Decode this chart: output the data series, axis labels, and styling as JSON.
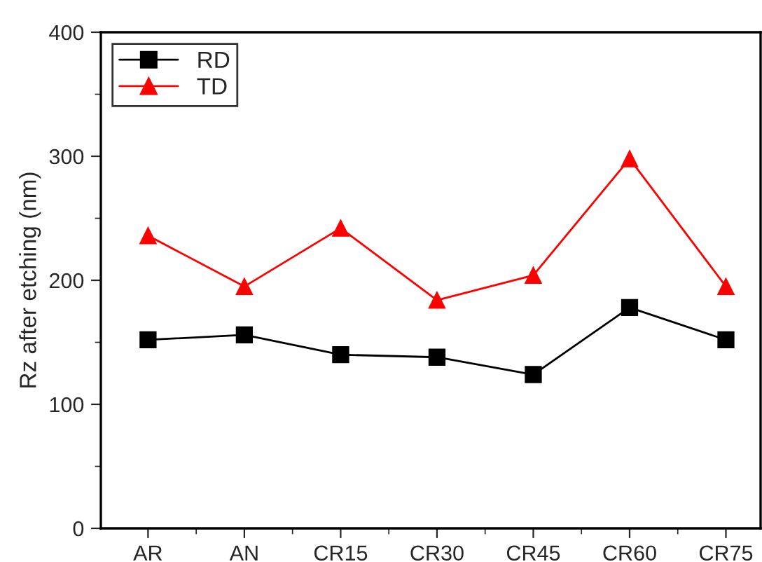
{
  "chart_data": {
    "type": "line",
    "ylabel": "Rz after etching (nm)",
    "categories": [
      "AR",
      "AN",
      "CR15",
      "CR30",
      "CR45",
      "CR60",
      "CR75"
    ],
    "series": [
      {
        "name": "RD",
        "color": "#000000",
        "marker": "square",
        "values": [
          152,
          156,
          140,
          138,
          124,
          178,
          152
        ]
      },
      {
        "name": "TD",
        "color": "#ff0000",
        "marker": "triangle",
        "values": [
          236,
          195,
          242,
          184,
          204,
          298,
          195
        ]
      }
    ],
    "ylim": [
      0,
      400
    ],
    "yticks": [
      0,
      100,
      200,
      300,
      400
    ],
    "grid": false,
    "legend": "top left",
    "line_style": "solid"
  }
}
